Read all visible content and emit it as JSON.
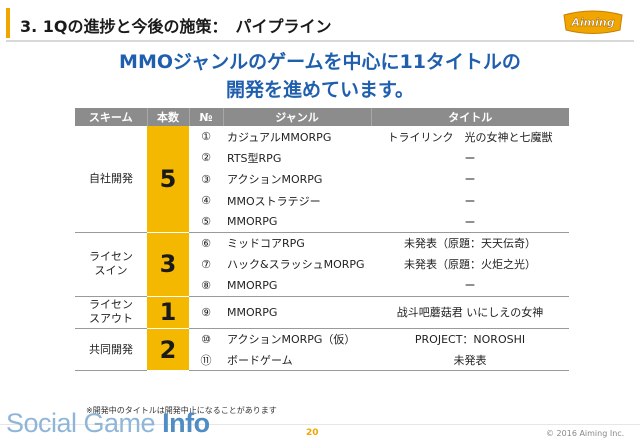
{
  "header": {
    "title": "3. 1Qの進捗と今後の施策：　パイプライン",
    "logo_text": "Aiming",
    "accent_color": "#f0a500"
  },
  "headline": {
    "line1": "MMOジャンルのゲームを中心に11タイトルの",
    "line2": "開発を進めています。",
    "color": "#1f5fad"
  },
  "table": {
    "columns": [
      "スキーム",
      "本数",
      "№",
      "ジャンル",
      "タイトル"
    ],
    "groups": [
      {
        "scheme": "自社開発",
        "count": "5",
        "rows": [
          {
            "no": "①",
            "genre": "カジュアルMMORPG",
            "title": "トライリンク　光の女神と七魔獣"
          },
          {
            "no": "②",
            "genre": "RTS型RPG",
            "title": "ー"
          },
          {
            "no": "③",
            "genre": "アクションMORPG",
            "title": "ー"
          },
          {
            "no": "④",
            "genre": "MMOストラテジー",
            "title": "ー"
          },
          {
            "no": "⑤",
            "genre": "MMORPG",
            "title": "ー"
          }
        ]
      },
      {
        "scheme": "ライセンスイン",
        "count": "3",
        "rows": [
          {
            "no": "⑥",
            "genre": "ミッドコアRPG",
            "title": "未発表（原題：天天伝奇）"
          },
          {
            "no": "⑦",
            "genre": "ハック&スラッシュMORPG",
            "title": "未発表（原題：火炬之光）"
          },
          {
            "no": "⑧",
            "genre": "MMORPG",
            "title": "ー"
          }
        ]
      },
      {
        "scheme": "ライセンスアウト",
        "count": "1",
        "rows": [
          {
            "no": "⑨",
            "genre": "MMORPG",
            "title": "战斗吧蘑菇君 いにしえの女神"
          }
        ]
      },
      {
        "scheme": "共同開発",
        "count": "2",
        "rows": [
          {
            "no": "⑩",
            "genre": "アクションMORPG（仮）",
            "title": "PROJECT：NOROSHI"
          },
          {
            "no": "⑪",
            "genre": "ボードゲーム",
            "title": "未発表"
          }
        ]
      }
    ],
    "count_color": "#f5b800",
    "header_color": "#8c8c8c"
  },
  "note": "※開発中のタイトルは開発中止になることがあります",
  "footer": {
    "brand_light": "Social Game ",
    "brand_bold": "Info",
    "page_number": "20",
    "copyright": "© 2016 Aiming Inc."
  }
}
